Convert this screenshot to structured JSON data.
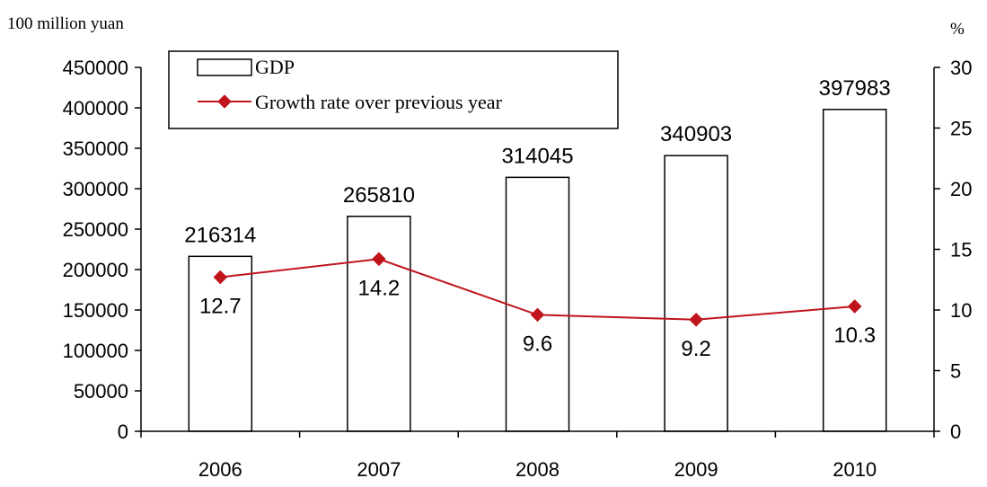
{
  "chart_data": {
    "type": "bar",
    "categories": [
      "2006",
      "2007",
      "2008",
      "2009",
      "2010"
    ],
    "series": [
      {
        "name": "GDP",
        "type": "bar",
        "axis": "left",
        "values": [
          216314,
          265810,
          314045,
          340903,
          397983
        ],
        "color": "#ffffff",
        "stroke": "#000000"
      },
      {
        "name": "Growth rate over previous year",
        "type": "line",
        "axis": "right",
        "values": [
          12.7,
          14.2,
          9.6,
          9.2,
          10.3
        ],
        "color": "#c0141c"
      }
    ],
    "left_axis": {
      "unit": "100 million yuan",
      "range": [
        0,
        450000
      ],
      "ticks": [
        0,
        50000,
        100000,
        150000,
        200000,
        250000,
        300000,
        350000,
        400000,
        450000
      ]
    },
    "right_axis": {
      "unit": "%",
      "range": [
        0,
        30
      ],
      "ticks": [
        0,
        5,
        10,
        15,
        20,
        25,
        30
      ]
    },
    "bar_labels": [
      "216314",
      "265810",
      "314045",
      "340903",
      "397983"
    ],
    "rate_labels": [
      "12.7",
      "14.2",
      "9.6",
      "9.2",
      "10.3"
    ],
    "legend": {
      "position": "top-left",
      "items": [
        "GDP",
        "Growth rate over previous year"
      ]
    },
    "grid": false
  }
}
